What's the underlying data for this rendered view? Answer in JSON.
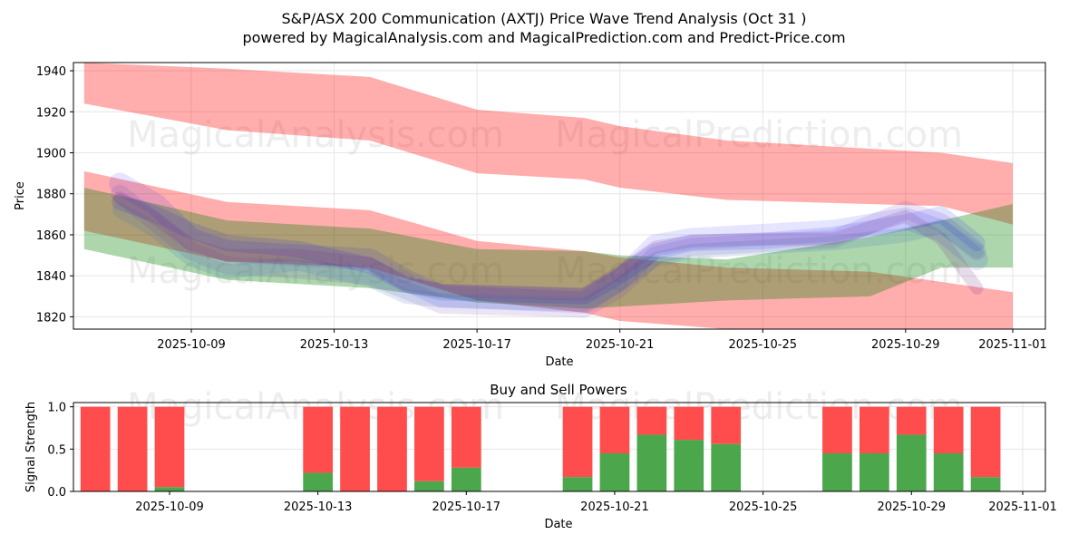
{
  "title_line1": "S&P/ASX 200 Communication (AXTJ) Price Wave Trend Analysis (Oct 31 )",
  "title_line2": "powered by MagicalAnalysis.com and MagicalPrediction.com and Predict-Price.com",
  "watermarks": [
    "MagicalAnalysis.com",
    "MagicalPrediction.com"
  ],
  "colors": {
    "red_band": "#ff0000",
    "green_band": "#008000",
    "blue_wave": "#0000ff",
    "buy": "#4ca64c",
    "sell": "#ff4d4d",
    "grid": "#e6e6e6"
  },
  "chart_data": [
    {
      "type": "area",
      "name": "price-wave",
      "xlabel": "Date",
      "ylabel": "Price",
      "xlim": [
        "2025-10-05",
        "2025-11-01"
      ],
      "ylim": [
        1814,
        1944
      ],
      "x_ticks": [
        "2025-10-09",
        "2025-10-13",
        "2025-10-17",
        "2025-10-21",
        "2025-10-25",
        "2025-10-29",
        "2025-11-01"
      ],
      "y_ticks": [
        1820,
        1840,
        1860,
        1880,
        1900,
        1920,
        1940
      ],
      "grid": true,
      "bands": [
        {
          "name": "red-upper",
          "color": "red",
          "upper": [
            [
              0,
              1944
            ],
            [
              4,
              1941
            ],
            [
              8,
              1937
            ],
            [
              11,
              1921
            ],
            [
              14,
              1917
            ],
            [
              15,
              1913
            ],
            [
              18,
              1906
            ],
            [
              24,
              1900
            ],
            [
              26,
              1895
            ]
          ],
          "lower": [
            [
              0,
              1924
            ],
            [
              4,
              1911
            ],
            [
              8,
              1906
            ],
            [
              11,
              1890
            ],
            [
              14,
              1887
            ],
            [
              15,
              1883
            ],
            [
              18,
              1877
            ],
            [
              24,
              1874
            ],
            [
              26,
              1865
            ]
          ]
        },
        {
          "name": "red-lower",
          "color": "red",
          "upper": [
            [
              0,
              1891
            ],
            [
              4,
              1876
            ],
            [
              8,
              1872
            ],
            [
              11,
              1857
            ],
            [
              14,
              1852
            ],
            [
              15,
              1849
            ],
            [
              18,
              1844
            ],
            [
              22,
              1842
            ],
            [
              26,
              1832
            ]
          ],
          "lower": [
            [
              0,
              1862
            ],
            [
              4,
              1847
            ],
            [
              8,
              1844
            ],
            [
              11,
              1828
            ],
            [
              14,
              1822
            ],
            [
              15,
              1818
            ],
            [
              18,
              1814
            ],
            [
              26,
              1814
            ]
          ]
        },
        {
          "name": "green",
          "color": "green",
          "upper": [
            [
              0,
              1883
            ],
            [
              4,
              1867
            ],
            [
              8,
              1863
            ],
            [
              11,
              1853
            ],
            [
              14,
              1852
            ],
            [
              15,
              1850
            ],
            [
              18,
              1848
            ],
            [
              22,
              1859
            ],
            [
              26,
              1875
            ]
          ],
          "lower": [
            [
              0,
              1853
            ],
            [
              4,
              1838
            ],
            [
              8,
              1834
            ],
            [
              11,
              1827
            ],
            [
              14,
              1824
            ],
            [
              15,
              1825
            ],
            [
              18,
              1828
            ],
            [
              22,
              1830
            ],
            [
              24,
              1844
            ],
            [
              26,
              1844
            ]
          ]
        }
      ],
      "waves": [
        {
          "name": "wave-1",
          "points": [
            [
              1,
              1885
            ],
            [
              2,
              1875
            ],
            [
              3,
              1858
            ],
            [
              4,
              1852
            ],
            [
              6,
              1850
            ],
            [
              8,
              1848
            ],
            [
              9,
              1838
            ],
            [
              10,
              1830
            ],
            [
              14,
              1827
            ],
            [
              15,
              1838
            ],
            [
              16,
              1855
            ],
            [
              17,
              1858
            ],
            [
              19,
              1860
            ],
            [
              21,
              1862
            ],
            [
              23,
              1868
            ],
            [
              24,
              1862
            ],
            [
              25,
              1848
            ]
          ]
        },
        {
          "name": "wave-2",
          "points": [
            [
              1,
              1880
            ],
            [
              2,
              1866
            ],
            [
              3,
              1852
            ],
            [
              4,
              1845
            ],
            [
              6,
              1843
            ],
            [
              8,
              1840
            ],
            [
              9,
              1833
            ],
            [
              10,
              1826
            ],
            [
              14,
              1824
            ],
            [
              15,
              1834
            ],
            [
              16,
              1850
            ],
            [
              17,
              1854
            ],
            [
              19,
              1856
            ],
            [
              21,
              1858
            ],
            [
              23,
              1872
            ],
            [
              24,
              1866
            ],
            [
              25,
              1852
            ]
          ]
        },
        {
          "name": "wave-3",
          "points": [
            [
              1,
              1876
            ],
            [
              2,
              1870
            ],
            [
              3,
              1862
            ],
            [
              4,
              1856
            ],
            [
              6,
              1853
            ],
            [
              8,
              1845
            ],
            [
              9,
              1836
            ],
            [
              10,
              1832
            ],
            [
              14,
              1830
            ],
            [
              15,
              1840
            ],
            [
              16,
              1852
            ],
            [
              17,
              1856
            ],
            [
              19,
              1857
            ],
            [
              21,
              1860
            ],
            [
              23,
              1866
            ],
            [
              24,
              1870
            ],
            [
              25,
              1856
            ]
          ]
        },
        {
          "name": "wave-4",
          "points": [
            [
              1,
              1872
            ],
            [
              2,
              1862
            ],
            [
              3,
              1848
            ],
            [
              4,
              1842
            ],
            [
              6,
              1846
            ],
            [
              8,
              1838
            ],
            [
              9,
              1830
            ],
            [
              10,
              1828
            ],
            [
              14,
              1826
            ],
            [
              15,
              1836
            ],
            [
              16,
              1848
            ],
            [
              17,
              1852
            ],
            [
              19,
              1854
            ],
            [
              21,
              1856
            ],
            [
              23,
              1860
            ],
            [
              24,
              1864
            ],
            [
              25,
              1852
            ]
          ]
        },
        {
          "name": "wave-5",
          "points": [
            [
              1,
              1878
            ],
            [
              2,
              1868
            ],
            [
              3,
              1855
            ],
            [
              4,
              1850
            ],
            [
              6,
              1850
            ],
            [
              8,
              1846
            ],
            [
              9,
              1836
            ],
            [
              10,
              1833
            ],
            [
              14,
              1831
            ],
            [
              15,
              1842
            ],
            [
              16,
              1854
            ],
            [
              17,
              1857
            ],
            [
              19,
              1858
            ],
            [
              21,
              1858
            ],
            [
              23,
              1869
            ],
            [
              24,
              1858
            ],
            [
              25,
              1834
            ]
          ]
        }
      ]
    },
    {
      "type": "bar",
      "name": "buy-sell-powers",
      "title": "Buy and Sell Powers",
      "xlabel": "Date",
      "ylabel": "Signal Strength",
      "xlim": [
        "2025-10-05",
        "2025-11-01"
      ],
      "ylim": [
        0,
        1.05
      ],
      "x_ticks": [
        "2025-10-09",
        "2025-10-13",
        "2025-10-17",
        "2025-10-21",
        "2025-10-25",
        "2025-10-29",
        "2025-11-01"
      ],
      "y_ticks": [
        "0.0",
        "0.5",
        "1.0"
      ],
      "series": [
        {
          "name": "Buy",
          "color": "green"
        },
        {
          "name": "Sell",
          "color": "red"
        }
      ],
      "dates": [
        "2025-10-07",
        "2025-10-08",
        "2025-10-09",
        "2025-10-13",
        "2025-10-14",
        "2025-10-15",
        "2025-10-16",
        "2025-10-17",
        "2025-10-20",
        "2025-10-21",
        "2025-10-22",
        "2025-10-23",
        "2025-10-24",
        "2025-10-27",
        "2025-10-28",
        "2025-10-29",
        "2025-10-30",
        "2025-10-31"
      ],
      "buy": [
        0.0,
        0.0,
        0.05,
        0.22,
        0.0,
        0.0,
        0.12,
        0.28,
        0.17,
        0.45,
        0.67,
        0.61,
        0.56,
        0.45,
        0.45,
        0.67,
        0.45,
        0.17
      ],
      "total": [
        1,
        1,
        1,
        1,
        1,
        1,
        1,
        1,
        1,
        1,
        1,
        1,
        1,
        1,
        1,
        1,
        1,
        1
      ]
    }
  ]
}
